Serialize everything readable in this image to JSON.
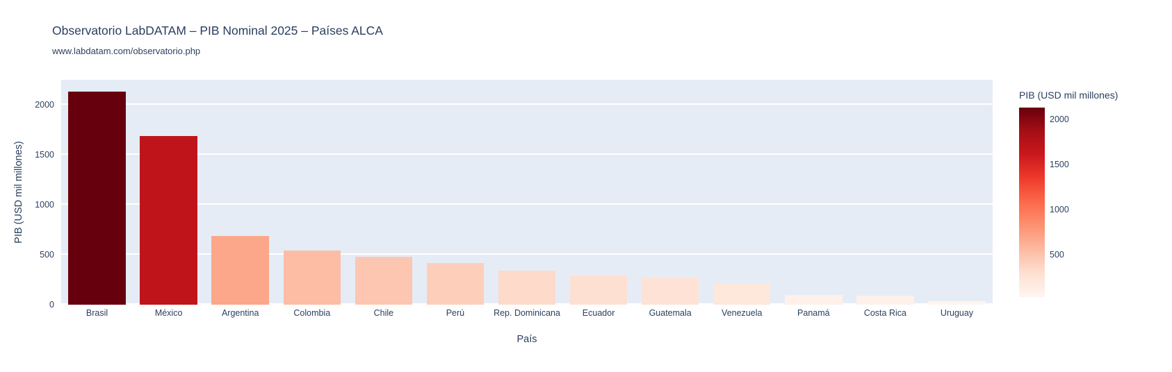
{
  "header": {
    "title": "Observatorio LabDATAM – PIB Nominal 2025 – Países ALCA",
    "subtitle": "www.labdatam.com/observatorio.php"
  },
  "colors": {
    "font": "#2a3f5f",
    "paper_bg": "#ffffff",
    "plot_bg": "#e5ecf6",
    "grid": "#ffffff"
  },
  "chart_data": {
    "type": "bar",
    "title": "Observatorio LabDATAM – PIB Nominal 2025 – Países ALCA",
    "subtitle": "www.labdatam.com/observatorio.php",
    "xlabel": "País",
    "ylabel": "PIB (USD mil millones)",
    "categories": [
      "Brasil",
      "México",
      "Argentina",
      "Colombia",
      "Chile",
      "Perú",
      "Rep. Dominicana",
      "Ecuador",
      "Guatemala",
      "Venezuela",
      "Panamá",
      "Costa Rica",
      "Uruguay"
    ],
    "values": [
      2130,
      1690,
      685,
      545,
      480,
      420,
      340,
      295,
      270,
      215,
      100,
      90,
      35
    ],
    "ylim": [
      0,
      2250
    ],
    "yticks": [
      0,
      500,
      1000,
      1500,
      2000
    ],
    "grid": true,
    "bar_gap": 0.2,
    "colorbar": {
      "title": "PIB (USD mil millones)",
      "position": "right",
      "cmin": 35,
      "cmax": 2130,
      "ticks": [
        2000,
        1500,
        1000,
        500
      ]
    },
    "colorscale_name": "Reds",
    "colorscale": [
      [
        0,
        "#fff5f0"
      ],
      [
        0.125,
        "#fee0d2"
      ],
      [
        0.25,
        "#fcbba1"
      ],
      [
        0.375,
        "#fc9272"
      ],
      [
        0.5,
        "#fb6a4a"
      ],
      [
        0.625,
        "#ef3b2c"
      ],
      [
        0.75,
        "#cb181d"
      ],
      [
        0.875,
        "#a50f15"
      ],
      [
        1,
        "#67000d"
      ]
    ]
  }
}
